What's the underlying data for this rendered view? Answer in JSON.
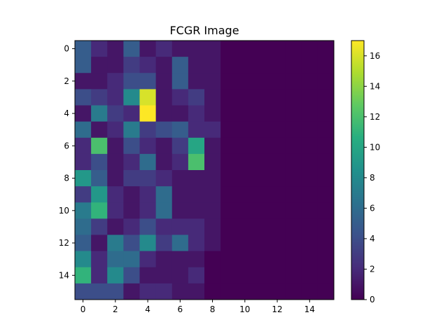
{
  "chart_data": {
    "type": "heatmap",
    "title": "FCGR Image",
    "xlabel": "",
    "ylabel": "",
    "rows": 16,
    "cols": 16,
    "x_ticks": [
      "0",
      "2",
      "4",
      "6",
      "8",
      "10",
      "12",
      "14"
    ],
    "y_ticks": [
      "0",
      "2",
      "4",
      "6",
      "8",
      "10",
      "12",
      "14"
    ],
    "colorbar": {
      "min": 0,
      "max": 17,
      "ticks": [
        "0",
        "2",
        "4",
        "6",
        "8",
        "10",
        "12",
        "14",
        "16"
      ],
      "colormap": "viridis"
    },
    "values": [
      [
        5,
        2,
        1,
        5,
        1,
        2,
        1,
        1,
        1,
        0,
        0,
        0,
        0,
        0,
        0,
        0
      ],
      [
        5,
        1,
        1,
        3,
        2,
        1,
        5,
        1,
        1,
        0,
        0,
        0,
        0,
        0,
        0,
        0
      ],
      [
        1,
        1,
        2,
        4,
        4,
        1,
        5,
        1,
        1,
        0,
        0,
        0,
        0,
        0,
        0,
        0
      ],
      [
        4,
        3,
        2,
        8,
        16,
        1,
        2,
        3,
        1,
        0,
        0,
        0,
        0,
        0,
        0,
        0
      ],
      [
        1,
        7,
        3,
        2,
        17,
        1,
        1,
        2,
        1,
        0,
        0,
        0,
        0,
        0,
        0,
        0
      ],
      [
        6,
        1,
        2,
        7,
        3,
        4,
        5,
        2,
        2,
        0,
        0,
        0,
        0,
        0,
        0,
        0
      ],
      [
        2,
        12,
        1,
        4,
        2,
        1,
        3,
        10,
        1,
        0,
        0,
        0,
        0,
        0,
        0,
        0
      ],
      [
        2,
        4,
        1,
        2,
        6,
        1,
        2,
        12,
        1,
        0,
        0,
        0,
        0,
        0,
        0,
        0
      ],
      [
        9,
        5,
        1,
        3,
        3,
        2,
        1,
        1,
        1,
        0,
        0,
        0,
        0,
        0,
        0,
        0
      ],
      [
        3,
        9,
        2,
        1,
        2,
        6,
        1,
        1,
        1,
        0,
        0,
        0,
        0,
        0,
        0,
        0
      ],
      [
        7,
        11,
        2,
        1,
        2,
        6,
        1,
        1,
        1,
        0,
        0,
        0,
        0,
        0,
        0,
        0
      ],
      [
        6,
        3,
        1,
        2,
        4,
        2,
        2,
        2,
        1,
        0,
        0,
        0,
        0,
        0,
        0,
        0
      ],
      [
        5,
        1,
        7,
        4,
        8,
        3,
        6,
        2,
        1,
        0,
        0,
        0,
        0,
        0,
        0,
        0
      ],
      [
        8,
        2,
        6,
        6,
        2,
        1,
        1,
        1,
        0,
        0,
        0,
        0,
        0,
        0,
        0,
        0
      ],
      [
        11,
        2,
        8,
        4,
        1,
        1,
        1,
        2,
        0,
        0,
        0,
        0,
        0,
        0,
        0,
        0
      ],
      [
        4,
        4,
        4,
        1,
        2,
        2,
        1,
        1,
        0,
        0,
        0,
        0,
        0,
        0,
        0,
        0
      ]
    ]
  }
}
